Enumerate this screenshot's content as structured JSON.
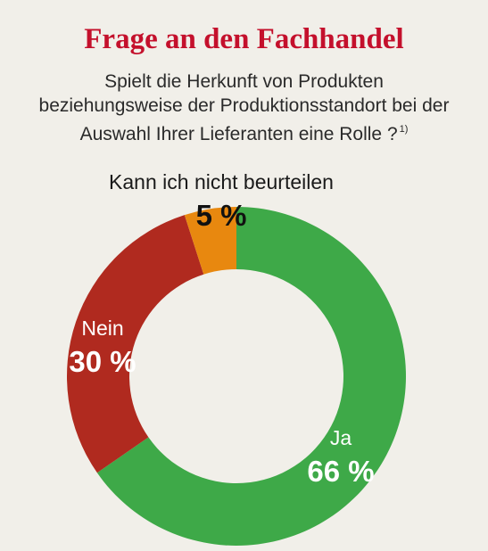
{
  "title": "Frage an den Fachhandel",
  "question": {
    "line1": "Spielt die Herkunft von Produkten",
    "line2": "beziehungsweise der Produktionsstandort bei der",
    "line3": "Auswahl Ihrer Lieferanten eine Rolle ?",
    "footnote": "1)"
  },
  "chart_data": {
    "type": "pie",
    "variant": "donut",
    "categories": [
      "Ja",
      "Nein",
      "Kann ich nicht beurteilen"
    ],
    "values": [
      66,
      30,
      5
    ],
    "value_labels": [
      "66 %",
      "30 %",
      "5 %"
    ],
    "colors": [
      "#3ea948",
      "#b02a1f",
      "#e8880f"
    ],
    "start_angle": "12 o'clock",
    "direction": "clockwise"
  }
}
